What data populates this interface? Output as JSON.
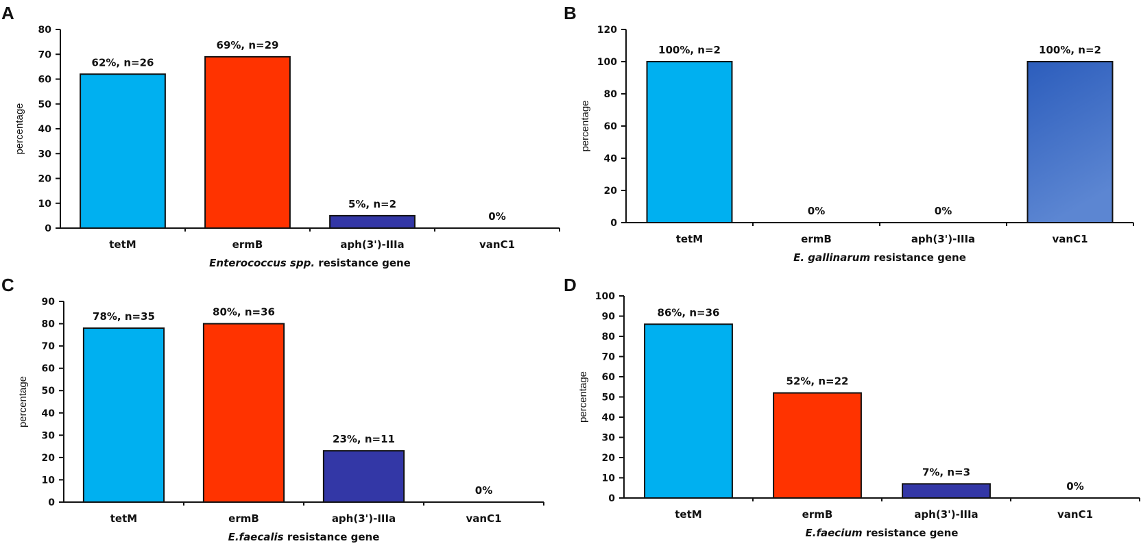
{
  "colors": {
    "tetM": "#00B0F0",
    "ermB": "#FF3300",
    "aph": "#3337A6",
    "vanC1_top": "#2C5DBC",
    "vanC1_bottom": "#5C86D2",
    "axis": "#111111"
  },
  "chart_data": [
    {
      "type": "bar",
      "panel": "A",
      "title": "",
      "ylabel": "percentage",
      "xlabel_italic": "Enterococcus spp.",
      "xlabel_rest": " resistance gene",
      "categories": [
        "tetM",
        "ermB",
        "aph(3')-IIIa",
        "vanC1"
      ],
      "values": [
        62,
        69,
        5,
        0
      ],
      "data_labels": [
        "62%, n=26",
        "69%, n=29",
        "5%, n=2",
        "0%"
      ],
      "ylim": [
        0,
        80
      ],
      "yticks": [
        0,
        10,
        20,
        30,
        40,
        50,
        60,
        70,
        80
      ],
      "grid": false
    },
    {
      "type": "bar",
      "panel": "B",
      "title": "",
      "ylabel": "percentage",
      "xlabel_italic": "E. gallinarum",
      "xlabel_rest": " resistance gene",
      "categories": [
        "tetM",
        "ermB",
        "aph(3')-IIIa",
        "vanC1"
      ],
      "values": [
        100,
        0,
        0,
        100
      ],
      "data_labels": [
        "100%, n=2",
        "0%",
        "0%",
        "100%, n=2"
      ],
      "ylim": [
        0,
        120
      ],
      "yticks": [
        0,
        20,
        40,
        60,
        80,
        100,
        120
      ],
      "grid": false
    },
    {
      "type": "bar",
      "panel": "C",
      "title": "",
      "ylabel": "percentage",
      "xlabel_italic": "E.faecalis",
      "xlabel_rest": " resistance gene",
      "categories": [
        "tetM",
        "ermB",
        "aph(3')-IIIa",
        "vanC1"
      ],
      "values": [
        78,
        80,
        23,
        0
      ],
      "data_labels": [
        "78%, n=35",
        "80%, n=36",
        "23%, n=11",
        "0%"
      ],
      "ylim": [
        0,
        90
      ],
      "yticks": [
        0,
        10,
        20,
        30,
        40,
        50,
        60,
        70,
        80,
        90
      ],
      "grid": false
    },
    {
      "type": "bar",
      "panel": "D",
      "title": "",
      "ylabel": "percentage",
      "xlabel_italic": "E.faecium",
      "xlabel_rest": " resistance gene",
      "categories": [
        "tetM",
        "ermB",
        "aph(3')-IIIa",
        "vanC1"
      ],
      "values": [
        86,
        52,
        7,
        0
      ],
      "data_labels": [
        "86%, n=36",
        "52%, n=22",
        "7%, n=3",
        "0%"
      ],
      "ylim": [
        0,
        100
      ],
      "yticks": [
        0,
        10,
        20,
        30,
        40,
        50,
        60,
        70,
        80,
        90,
        100
      ],
      "grid": false
    }
  ]
}
